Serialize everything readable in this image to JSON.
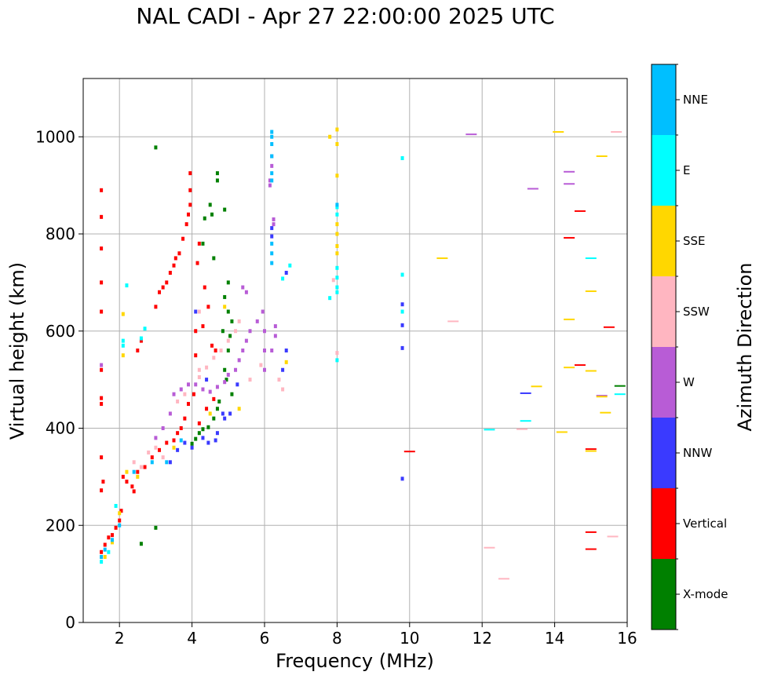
{
  "chart_data": {
    "type": "scatter",
    "title": "NAL CADI - Apr 27 22:00:00 2025 UTC",
    "xlabel": "Frequency (MHz)",
    "ylabel": "Virtual height (km)",
    "xlim": [
      1,
      16
    ],
    "ylim": [
      0,
      1120
    ],
    "xticks": [
      2,
      4,
      6,
      8,
      10,
      12,
      14,
      16
    ],
    "yticks": [
      0,
      200,
      400,
      600,
      800,
      1000
    ],
    "grid": true,
    "colorbar": {
      "label": "Azimuth Direction",
      "categories": [
        {
          "name": "X-mode",
          "color": "#008000"
        },
        {
          "name": "Vertical",
          "color": "#ff0000"
        },
        {
          "name": "NNW",
          "color": "#3a3aff"
        },
        {
          "name": "W",
          "color": "#b85cd6"
        },
        {
          "name": "SSW",
          "color": "#ffb6c1"
        },
        {
          "name": "SSE",
          "color": "#ffd700"
        },
        {
          "name": "E",
          "color": "#00ffff"
        },
        {
          "name": "NNE",
          "color": "#00bfff"
        }
      ]
    },
    "series": [
      {
        "name": "X-mode",
        "points": [
          [
            4.0,
            368
          ],
          [
            4.1,
            378
          ],
          [
            4.2,
            390
          ],
          [
            4.3,
            398
          ],
          [
            4.45,
            402
          ],
          [
            4.6,
            420
          ],
          [
            4.7,
            440
          ],
          [
            4.75,
            455
          ],
          [
            4.9,
            520
          ],
          [
            5.0,
            560
          ],
          [
            5.05,
            590
          ],
          [
            5.1,
            620
          ],
          [
            5.0,
            640
          ],
          [
            4.85,
            600
          ],
          [
            4.95,
            500
          ],
          [
            5.1,
            470
          ],
          [
            4.5,
            860
          ],
          [
            4.7,
            910
          ],
          [
            4.7,
            925
          ],
          [
            4.3,
            780
          ],
          [
            4.6,
            750
          ],
          [
            5.0,
            700
          ],
          [
            4.9,
            850
          ],
          [
            4.55,
            840
          ],
          [
            3.0,
            195
          ],
          [
            2.6,
            162
          ],
          [
            3.0,
            978
          ],
          [
            4.35,
            832
          ],
          [
            4.9,
            670
          ],
          [
            15.8,
            487
          ]
        ]
      },
      {
        "name": "Vertical",
        "points": [
          [
            1.5,
            145
          ],
          [
            1.6,
            160
          ],
          [
            1.7,
            175
          ],
          [
            1.8,
            180
          ],
          [
            1.9,
            195
          ],
          [
            2.0,
            210
          ],
          [
            2.05,
            230
          ],
          [
            1.55,
            290
          ],
          [
            1.5,
            340
          ],
          [
            1.5,
            272
          ],
          [
            1.5,
            450
          ],
          [
            1.5,
            462
          ],
          [
            1.5,
            520
          ],
          [
            1.5,
            640
          ],
          [
            1.5,
            700
          ],
          [
            1.5,
            770
          ],
          [
            1.5,
            835
          ],
          [
            1.5,
            890
          ],
          [
            2.1,
            300
          ],
          [
            2.2,
            290
          ],
          [
            2.35,
            280
          ],
          [
            2.4,
            270
          ],
          [
            2.5,
            310
          ],
          [
            2.7,
            320
          ],
          [
            2.9,
            340
          ],
          [
            3.1,
            355
          ],
          [
            3.3,
            370
          ],
          [
            3.5,
            375
          ],
          [
            3.6,
            390
          ],
          [
            3.7,
            400
          ],
          [
            3.8,
            420
          ],
          [
            3.9,
            450
          ],
          [
            4.05,
            470
          ],
          [
            4.2,
            410
          ],
          [
            4.4,
            440
          ],
          [
            4.6,
            460
          ],
          [
            2.5,
            560
          ],
          [
            2.6,
            580
          ],
          [
            3.0,
            650
          ],
          [
            3.1,
            680
          ],
          [
            3.2,
            690
          ],
          [
            3.3,
            700
          ],
          [
            3.4,
            720
          ],
          [
            3.5,
            735
          ],
          [
            3.55,
            750
          ],
          [
            3.65,
            760
          ],
          [
            3.75,
            790
          ],
          [
            3.85,
            820
          ],
          [
            3.9,
            840
          ],
          [
            3.95,
            860
          ],
          [
            3.95,
            890
          ],
          [
            3.95,
            925
          ],
          [
            4.1,
            550
          ],
          [
            4.1,
            600
          ],
          [
            4.3,
            610
          ],
          [
            4.45,
            650
          ],
          [
            4.55,
            570
          ],
          [
            4.65,
            560
          ],
          [
            4.35,
            690
          ],
          [
            4.15,
            740
          ],
          [
            4.2,
            780
          ],
          [
            10.0,
            352
          ],
          [
            14.7,
            530
          ],
          [
            15.0,
            357
          ],
          [
            15.0,
            186
          ],
          [
            15.0,
            151
          ],
          [
            15.5,
            608
          ],
          [
            14.7,
            847
          ],
          [
            14.4,
            792
          ]
        ]
      },
      {
        "name": "NNW",
        "points": [
          [
            3.4,
            330
          ],
          [
            3.6,
            355
          ],
          [
            3.8,
            370
          ],
          [
            4.0,
            360
          ],
          [
            4.3,
            380
          ],
          [
            4.45,
            370
          ],
          [
            4.65,
            375
          ],
          [
            4.7,
            390
          ],
          [
            4.9,
            420
          ],
          [
            5.05,
            430
          ],
          [
            5.25,
            490
          ],
          [
            4.4,
            500
          ],
          [
            6.2,
            812
          ],
          [
            6.2,
            795
          ],
          [
            6.5,
            520
          ],
          [
            6.6,
            560
          ],
          [
            6.6,
            720
          ],
          [
            9.8,
            655
          ],
          [
            9.8,
            612
          ],
          [
            9.8,
            565
          ],
          [
            9.8,
            296
          ],
          [
            13.2,
            472
          ],
          [
            4.85,
            430
          ],
          [
            4.1,
            640
          ]
        ]
      },
      {
        "name": "W",
        "points": [
          [
            3.0,
            380
          ],
          [
            3.2,
            400
          ],
          [
            3.4,
            430
          ],
          [
            3.5,
            470
          ],
          [
            3.7,
            480
          ],
          [
            3.9,
            490
          ],
          [
            4.1,
            490
          ],
          [
            4.3,
            480
          ],
          [
            4.5,
            475
          ],
          [
            4.7,
            485
          ],
          [
            4.9,
            495
          ],
          [
            5.0,
            510
          ],
          [
            5.2,
            520
          ],
          [
            5.3,
            540
          ],
          [
            5.4,
            560
          ],
          [
            5.5,
            580
          ],
          [
            5.6,
            600
          ],
          [
            5.8,
            620
          ],
          [
            5.95,
            640
          ],
          [
            6.0,
            520
          ],
          [
            6.0,
            560
          ],
          [
            6.0,
            600
          ],
          [
            6.2,
            560
          ],
          [
            6.3,
            590
          ],
          [
            6.3,
            610
          ],
          [
            6.15,
            900
          ],
          [
            6.15,
            910
          ],
          [
            6.2,
            940
          ],
          [
            6.2,
            960
          ],
          [
            6.25,
            830
          ],
          [
            6.25,
            820
          ],
          [
            5.4,
            690
          ],
          [
            5.5,
            680
          ],
          [
            11.7,
            1005
          ],
          [
            13.4,
            893
          ],
          [
            14.4,
            928
          ],
          [
            14.4,
            903
          ],
          [
            15.3,
            467
          ],
          [
            1.5,
            530
          ]
        ]
      },
      {
        "name": "SSW",
        "points": [
          [
            2.4,
            330
          ],
          [
            2.6,
            320
          ],
          [
            2.8,
            350
          ],
          [
            3.0,
            360
          ],
          [
            3.2,
            340
          ],
          [
            3.6,
            455
          ],
          [
            3.8,
            470
          ],
          [
            4.2,
            505
          ],
          [
            4.4,
            525
          ],
          [
            4.6,
            545
          ],
          [
            4.8,
            560
          ],
          [
            5.0,
            580
          ],
          [
            5.2,
            600
          ],
          [
            5.3,
            620
          ],
          [
            5.6,
            500
          ],
          [
            5.9,
            530
          ],
          [
            6.4,
            500
          ],
          [
            6.5,
            480
          ],
          [
            4.2,
            520
          ],
          [
            11.2,
            620
          ],
          [
            12.2,
            154
          ],
          [
            12.6,
            90
          ],
          [
            13.1,
            398
          ],
          [
            15.6,
            177
          ],
          [
            15.7,
            1010
          ],
          [
            8.0,
            555
          ],
          [
            7.9,
            705
          ],
          [
            4.2,
            640
          ]
        ]
      },
      {
        "name": "SSE",
        "points": [
          [
            1.6,
            135
          ],
          [
            1.8,
            165
          ],
          [
            2.0,
            225
          ],
          [
            2.2,
            310
          ],
          [
            2.5,
            300
          ],
          [
            3.5,
            360
          ],
          [
            4.5,
            430
          ],
          [
            5.3,
            440
          ],
          [
            2.1,
            635
          ],
          [
            2.1,
            550
          ],
          [
            7.8,
            1000
          ],
          [
            8.0,
            1015
          ],
          [
            8.0,
            985
          ],
          [
            8.0,
            920
          ],
          [
            8.0,
            820
          ],
          [
            8.0,
            800
          ],
          [
            8.0,
            775
          ],
          [
            8.0,
            760
          ],
          [
            10.9,
            750
          ],
          [
            13.5,
            486
          ],
          [
            14.1,
            1010
          ],
          [
            14.2,
            392
          ],
          [
            14.4,
            624
          ],
          [
            14.4,
            525
          ],
          [
            15.0,
            518
          ],
          [
            15.0,
            682
          ],
          [
            15.3,
            960
          ],
          [
            15.4,
            432
          ],
          [
            15.3,
            465
          ],
          [
            15.0,
            353
          ],
          [
            6.6,
            536
          ],
          [
            4.9,
            650
          ]
        ]
      },
      {
        "name": "E",
        "points": [
          [
            1.5,
            125
          ],
          [
            1.7,
            145
          ],
          [
            1.9,
            240
          ],
          [
            2.1,
            580
          ],
          [
            2.1,
            570
          ],
          [
            2.2,
            694
          ],
          [
            2.6,
            585
          ],
          [
            2.7,
            605
          ],
          [
            6.5,
            708
          ],
          [
            6.7,
            735
          ],
          [
            8.0,
            855
          ],
          [
            8.0,
            840
          ],
          [
            8.0,
            730
          ],
          [
            8.0,
            710
          ],
          [
            8.0,
            690
          ],
          [
            8.0,
            680
          ],
          [
            7.8,
            668
          ],
          [
            8.0,
            540
          ],
          [
            9.8,
            716
          ],
          [
            9.8,
            956
          ],
          [
            9.8,
            640
          ],
          [
            12.2,
            397
          ],
          [
            13.2,
            415
          ],
          [
            15.0,
            750
          ],
          [
            15.8,
            470
          ]
        ]
      },
      {
        "name": "NNE",
        "points": [
          [
            1.5,
            135
          ],
          [
            1.6,
            150
          ],
          [
            1.8,
            170
          ],
          [
            2.0,
            200
          ],
          [
            2.4,
            310
          ],
          [
            2.9,
            330
          ],
          [
            3.3,
            330
          ],
          [
            3.7,
            375
          ],
          [
            6.2,
            1010
          ],
          [
            6.2,
            1000
          ],
          [
            6.2,
            985
          ],
          [
            6.2,
            960
          ],
          [
            6.2,
            925
          ],
          [
            6.2,
            910
          ],
          [
            6.2,
            780
          ],
          [
            6.2,
            760
          ],
          [
            6.2,
            740
          ],
          [
            8.0,
            860
          ]
        ]
      }
    ]
  }
}
